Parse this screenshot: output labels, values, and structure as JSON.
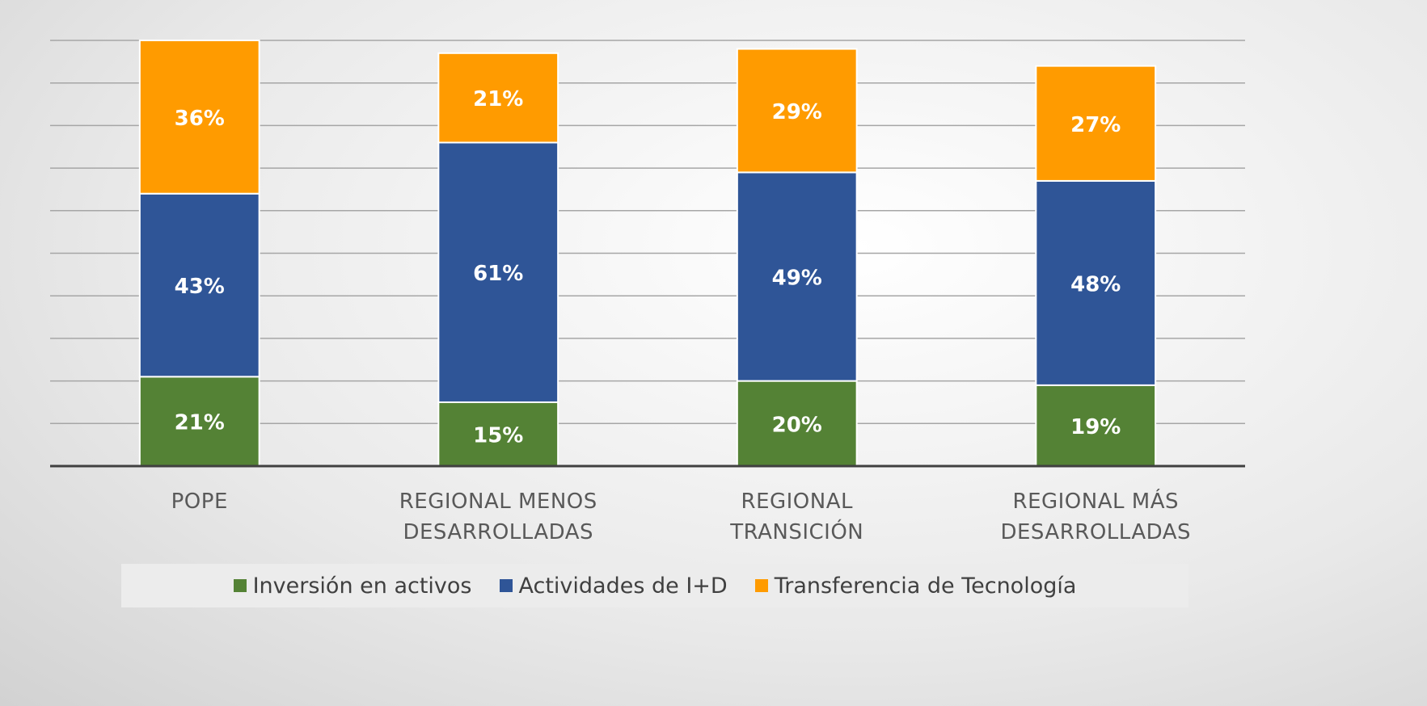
{
  "chart_data": {
    "type": "stacked_bar",
    "categories": [
      "POPE",
      "REGIONAL MENOS\nDESARROLLADAS",
      "REGIONAL\nTRANSICIÓN",
      "REGIONAL MÁS\nDESARROLLADAS"
    ],
    "series": [
      {
        "name": "Inversión en activos",
        "color": "#548235",
        "values": [
          21,
          15,
          20,
          19
        ],
        "value_labels": [
          "21%",
          "15%",
          "20%",
          "19%"
        ]
      },
      {
        "name": "Actividades de I+D",
        "color": "#2f5597",
        "values": [
          43,
          61,
          49,
          48
        ],
        "value_labels": [
          "43%",
          "61%",
          "49%",
          "48%"
        ]
      },
      {
        "name": "Transferencia de Tecnología",
        "color": "#ff9b00",
        "values": [
          36,
          21,
          29,
          27
        ],
        "value_labels": [
          "36%",
          "21%",
          "29%",
          "27%"
        ]
      }
    ],
    "ylim": [
      0,
      100
    ],
    "yticks": [
      0,
      10,
      20,
      30,
      40,
      50,
      60,
      70,
      80,
      90,
      100
    ],
    "grid": true
  }
}
